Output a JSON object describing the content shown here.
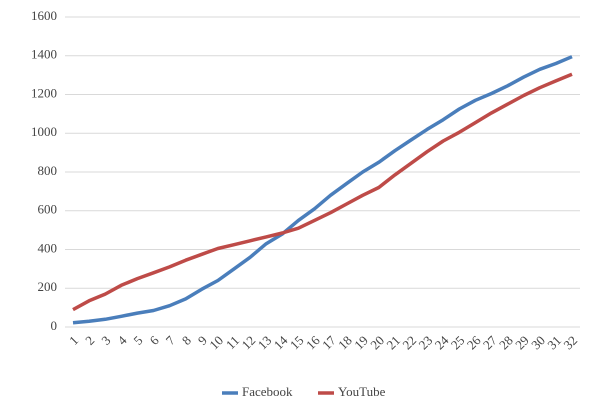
{
  "chart_data": {
    "type": "line",
    "categories": [
      "1",
      "2",
      "3",
      "4",
      "5",
      "6",
      "7",
      "8",
      "9",
      "10",
      "11",
      "12",
      "13",
      "14",
      "15",
      "16",
      "17",
      "18",
      "19",
      "20",
      "21",
      "22",
      "23",
      "24",
      "25",
      "26",
      "27",
      "28",
      "29",
      "30",
      "31",
      "32"
    ],
    "series": [
      {
        "name": "Facebook",
        "color": "#4a7ebb",
        "values": [
          22,
          30,
          40,
          55,
          72,
          85,
          110,
          145,
          195,
          240,
          300,
          360,
          430,
          480,
          550,
          610,
          680,
          740,
          800,
          850,
          910,
          965,
          1020,
          1070,
          1125,
          1170,
          1205,
          1245,
          1290,
          1330,
          1360,
          1395
        ]
      },
      {
        "name": "YouTube",
        "color": "#be4b48",
        "values": [
          90,
          135,
          170,
          215,
          250,
          280,
          310,
          345,
          375,
          405,
          425,
          445,
          465,
          485,
          510,
          550,
          590,
          635,
          680,
          720,
          785,
          845,
          905,
          960,
          1005,
          1055,
          1105,
          1150,
          1195,
          1235,
          1270,
          1305
        ]
      }
    ],
    "ylim": [
      0,
      1600
    ],
    "yticks": [
      0,
      200,
      400,
      600,
      800,
      1000,
      1200,
      1400,
      1600
    ],
    "grid": true,
    "legend": "bottom"
  }
}
